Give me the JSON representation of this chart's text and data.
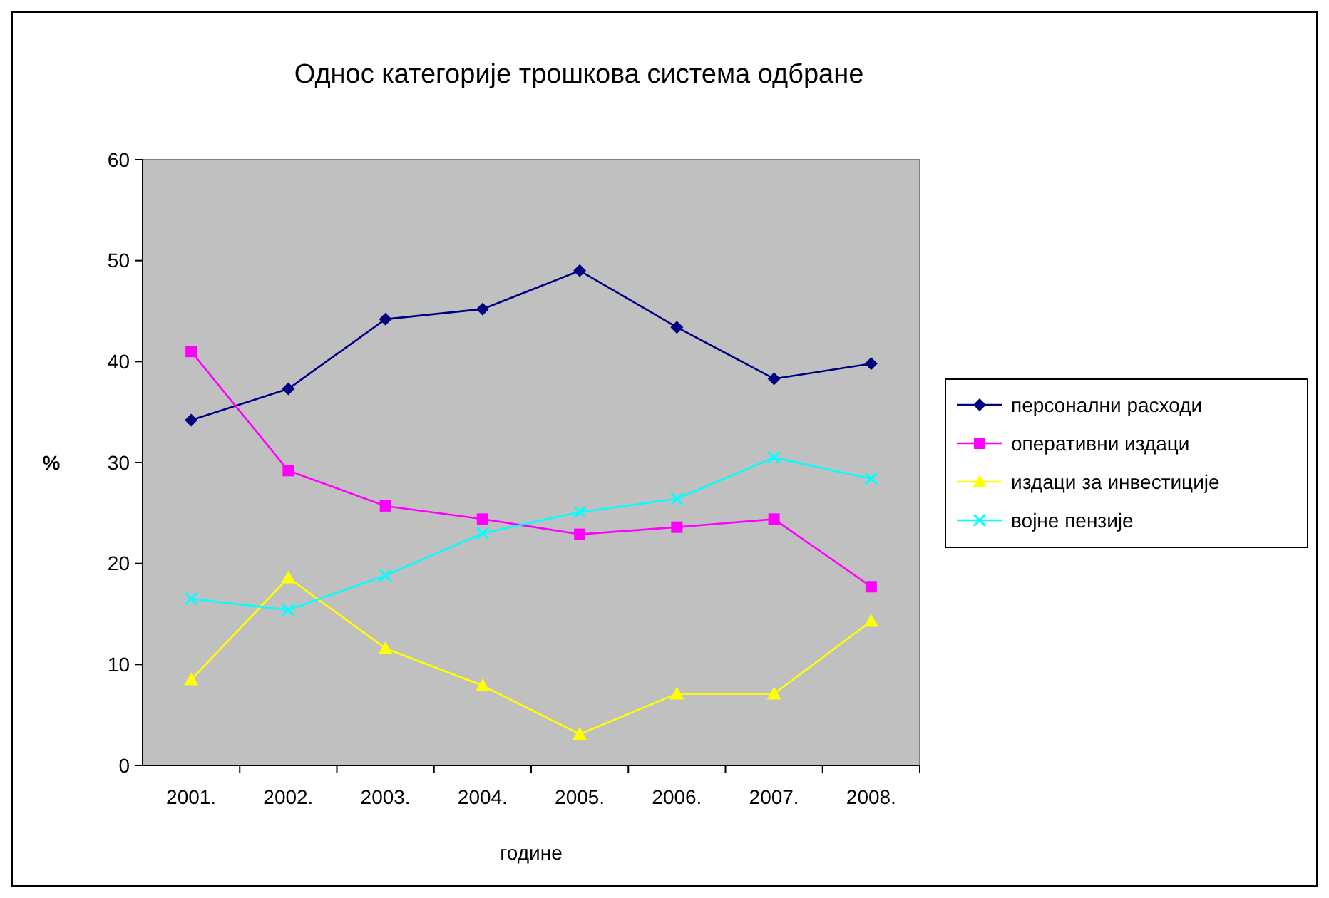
{
  "chart_data": {
    "type": "line",
    "title": "Однос категорије трошкова система одбране",
    "xlabel": "године",
    "ylabel": "%",
    "categories": [
      "2001.",
      "2002.",
      "2003.",
      "2004.",
      "2005.",
      "2006.",
      "2007.",
      "2008."
    ],
    "ylim": [
      0,
      60
    ],
    "yticks": [
      0,
      10,
      20,
      30,
      40,
      50,
      60
    ],
    "grid": false,
    "legend": "right",
    "series": [
      {
        "name": "персонални расходи",
        "color": "#000080",
        "marker": "diamond",
        "values": [
          34.2,
          37.3,
          44.2,
          45.2,
          49.0,
          43.4,
          38.3,
          39.8
        ]
      },
      {
        "name": "оперативни издаци",
        "color": "#ff00ff",
        "marker": "square",
        "values": [
          41.0,
          29.2,
          25.7,
          24.4,
          22.9,
          23.6,
          24.4,
          17.7
        ]
      },
      {
        "name": "издаци за инвестиције",
        "color": "#ffff00",
        "marker": "triangle",
        "values": [
          8.5,
          18.6,
          11.6,
          7.9,
          3.1,
          7.1,
          7.1,
          14.3
        ]
      },
      {
        "name": "војне пензије",
        "color": "#00ffff",
        "marker": "cross",
        "values": [
          16.5,
          15.4,
          18.8,
          23.0,
          25.1,
          26.4,
          30.5,
          28.4
        ]
      }
    ]
  }
}
